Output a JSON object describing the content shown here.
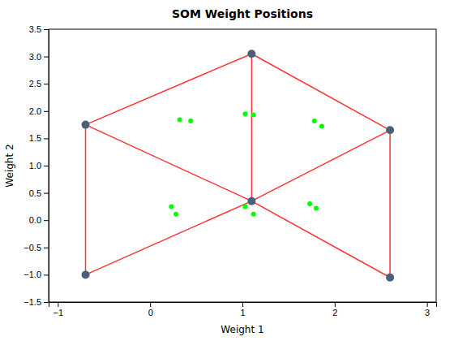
{
  "chart_data": {
    "type": "scatter",
    "title": "SOM Weight Positions",
    "xlabel": "Weight 1",
    "ylabel": "Weight 2",
    "xlim": [
      -1.1,
      3.1
    ],
    "ylim": [
      -1.5,
      3.5
    ],
    "xticks": [
      {
        "value": -1,
        "label": "−1"
      },
      0,
      1,
      2,
      3
    ],
    "yticks": [
      {
        "value": -1.5,
        "label": "−1.5"
      },
      {
        "value": -1,
        "label": "−1.0"
      },
      {
        "value": -0.5,
        "label": "−0.5"
      },
      {
        "value": 0,
        "label": "0.0"
      },
      0.5,
      {
        "value": 1,
        "label": "1.0"
      },
      1.5,
      {
        "value": 2,
        "label": "2.0"
      },
      2.5,
      {
        "value": 3,
        "label": "3.0"
      },
      3.5
    ],
    "grid": false,
    "series": [
      {
        "type": "line",
        "color": "#FF3333",
        "line_style": "solid",
        "x": [
          -0.7,
          1.1
        ],
        "values": [
          1.75,
          3.05
        ]
      },
      {
        "type": "line",
        "color": "#FF3333",
        "line_style": "solid",
        "x": [
          1.1,
          2.6
        ],
        "values": [
          3.05,
          1.65
        ]
      },
      {
        "type": "line",
        "color": "#FF3333",
        "line_style": "solid",
        "x": [
          1.1,
          1.1
        ],
        "values": [
          3.05,
          0.35
        ]
      },
      {
        "type": "line",
        "color": "#FF3333",
        "line_style": "solid",
        "x": [
          -0.7,
          1.1
        ],
        "values": [
          1.75,
          0.35
        ]
      },
      {
        "type": "line",
        "color": "#FF3333",
        "line_style": "solid",
        "x": [
          2.6,
          1.1
        ],
        "values": [
          1.65,
          0.35
        ]
      },
      {
        "type": "line",
        "color": "#FF3333",
        "line_style": "solid",
        "x": [
          -0.7,
          -0.7
        ],
        "values": [
          1.75,
          -1.0
        ]
      },
      {
        "type": "line",
        "color": "#FF3333",
        "line_style": "solid",
        "x": [
          -0.7,
          1.1
        ],
        "values": [
          -1.0,
          0.35
        ]
      },
      {
        "type": "line",
        "color": "#FF3333",
        "line_style": "solid",
        "x": [
          1.1,
          2.6
        ],
        "values": [
          0.35,
          -1.05
        ]
      },
      {
        "type": "line",
        "color": "#FF3333",
        "line_style": "solid",
        "x": [
          2.6,
          2.6
        ],
        "values": [
          1.65,
          -1.05
        ]
      },
      {
        "type": "scatter",
        "color": "#00FF00",
        "marker": "point",
        "x": [
          0.32,
          0.44,
          1.03,
          1.12,
          1.78,
          1.86,
          0.23,
          0.28,
          1.03,
          1.12,
          1.73,
          1.8
        ],
        "values": [
          1.84,
          1.82,
          1.95,
          1.93,
          1.82,
          1.72,
          0.25,
          0.11,
          0.25,
          0.11,
          0.3,
          0.22
        ]
      },
      {
        "type": "scatter",
        "color": "#4C5F7A",
        "marker": "circle",
        "x": [
          -0.7,
          1.1,
          2.6,
          1.1,
          -0.7,
          2.6
        ],
        "values": [
          1.75,
          3.05,
          1.65,
          0.35,
          -1.0,
          -1.05
        ]
      }
    ]
  }
}
